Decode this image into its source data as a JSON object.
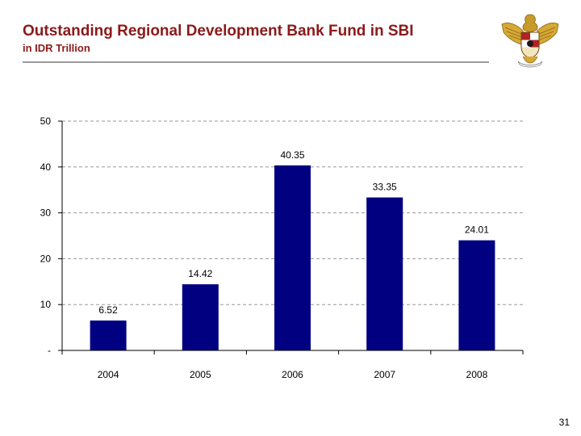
{
  "header": {
    "title": "Outstanding Regional Development Bank Fund in SBI",
    "subtitle": "in IDR Trillion"
  },
  "emblem": {
    "icon": "garuda-emblem-icon"
  },
  "colors": {
    "title": "#8b1a1a",
    "bar": "#000080",
    "grid": "#9a9a9a"
  },
  "chart_data": {
    "type": "bar",
    "categories": [
      "2004",
      "2005",
      "2006",
      "2007",
      "2008"
    ],
    "values": [
      6.52,
      14.42,
      40.35,
      33.35,
      24.01
    ],
    "data_labels": [
      "6.52",
      "14.42",
      "40.35",
      "33.35",
      "24.01"
    ],
    "title": "",
    "xlabel": "",
    "ylabel": "",
    "ylim": [
      0,
      50
    ],
    "yticks": [
      0,
      10,
      20,
      30,
      40,
      50
    ],
    "ytick_labels": [
      "-",
      "10",
      "20",
      "30",
      "40",
      "50"
    ],
    "grid": true,
    "grid_style": "dashed horizontal",
    "legend": "none"
  },
  "footer": {
    "page_number": "31"
  }
}
